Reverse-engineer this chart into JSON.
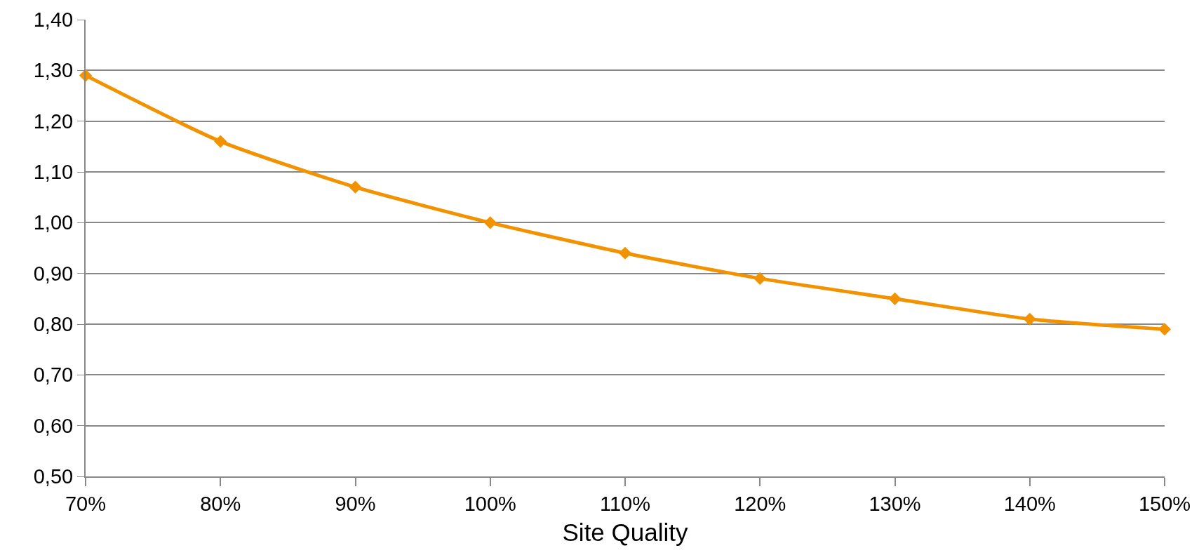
{
  "chart_data": {
    "type": "line",
    "xlabel": "Site Quality",
    "categories": [
      "70%",
      "80%",
      "90%",
      "100%",
      "110%",
      "120%",
      "130%",
      "140%",
      "150%"
    ],
    "series": [
      {
        "color": "#f39200",
        "values": [
          1.29,
          1.16,
          1.07,
          1.0,
          0.94,
          0.89,
          0.85,
          0.81,
          0.79
        ]
      }
    ],
    "ylim": [
      0.5,
      1.4
    ],
    "yticks": [
      {
        "value": 0.5,
        "label": "0,50"
      },
      {
        "value": 0.6,
        "label": "0,60"
      },
      {
        "value": 0.7,
        "label": "0,70"
      },
      {
        "value": 0.8,
        "label": "0,80"
      },
      {
        "value": 0.9,
        "label": "0,90"
      },
      {
        "value": 1.0,
        "label": "1,00"
      },
      {
        "value": 1.1,
        "label": "1,10"
      },
      {
        "value": 1.2,
        "label": "1,20"
      },
      {
        "value": 1.3,
        "label": "1,30"
      },
      {
        "value": 1.4,
        "label": "1,40"
      }
    ],
    "grid": "y",
    "marker": "diamond",
    "line_style": "solid"
  }
}
